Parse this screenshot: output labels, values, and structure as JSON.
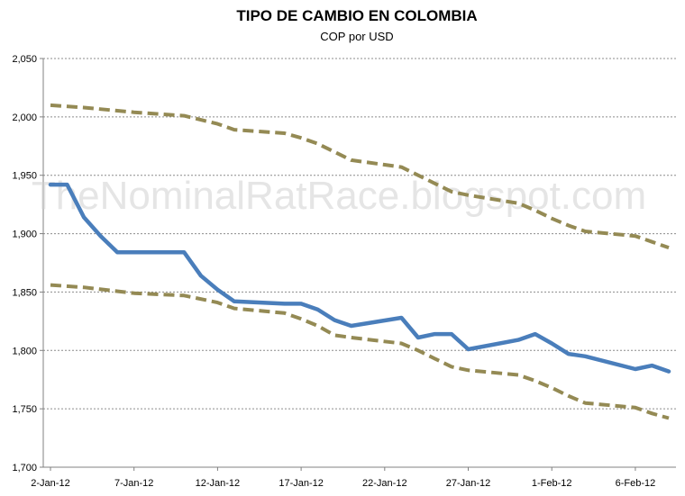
{
  "chart_data": {
    "type": "line",
    "title": "TIPO DE CAMBIO EN COLOMBIA",
    "subtitle": "COP por USD",
    "watermark": "TheNominalRatRace.blogspot.com",
    "xlabel": "",
    "ylabel": "",
    "ylim": [
      1700,
      2050
    ],
    "yticks": [
      1700,
      1750,
      1800,
      1850,
      1900,
      1950,
      2000,
      2050
    ],
    "ytick_labels": [
      "1,700",
      "1,750",
      "1,800",
      "1,850",
      "1,900",
      "1,950",
      "2,000",
      "2,050"
    ],
    "xlim": [
      "2012-01-02",
      "2012-02-08"
    ],
    "xticks": [
      "2012-01-02",
      "2012-01-07",
      "2012-01-12",
      "2012-01-17",
      "2012-01-22",
      "2012-01-27",
      "2012-02-01",
      "2012-02-06"
    ],
    "xtick_labels": [
      "2-Jan-12",
      "7-Jan-12",
      "12-Jan-12",
      "17-Jan-12",
      "22-Jan-12",
      "27-Jan-12",
      "1-Feb-12",
      "6-Feb-12"
    ],
    "grid": true,
    "series": [
      {
        "role": "main",
        "color": "#4a7ebb",
        "style": "solid",
        "x": [
          "2012-01-02",
          "2012-01-03",
          "2012-01-04",
          "2012-01-05",
          "2012-01-06",
          "2012-01-07",
          "2012-01-10",
          "2012-01-11",
          "2012-01-12",
          "2012-01-13",
          "2012-01-16",
          "2012-01-17",
          "2012-01-18",
          "2012-01-19",
          "2012-01-20",
          "2012-01-23",
          "2012-01-24",
          "2012-01-25",
          "2012-01-26",
          "2012-01-27",
          "2012-01-30",
          "2012-01-31",
          "2012-02-01",
          "2012-02-02",
          "2012-02-03",
          "2012-02-06",
          "2012-02-07",
          "2012-02-08"
        ],
        "y": [
          1942,
          1942,
          1914,
          1898,
          1884,
          1884,
          1884,
          1864,
          1852,
          1842,
          1840,
          1840,
          1835,
          1826,
          1821,
          1828,
          1811,
          1814,
          1814,
          1801,
          1809,
          1814,
          1806,
          1797,
          1795,
          1784,
          1787,
          1782
        ]
      },
      {
        "role": "upper",
        "color": "#948a54",
        "style": "dashed",
        "x": [
          "2012-01-02",
          "2012-01-04",
          "2012-01-07",
          "2012-01-10",
          "2012-01-12",
          "2012-01-13",
          "2012-01-16",
          "2012-01-17",
          "2012-01-18",
          "2012-01-19",
          "2012-01-20",
          "2012-01-23",
          "2012-01-24",
          "2012-01-25",
          "2012-01-26",
          "2012-01-27",
          "2012-01-30",
          "2012-01-31",
          "2012-02-01",
          "2012-02-02",
          "2012-02-03",
          "2012-02-06",
          "2012-02-07",
          "2012-02-08"
        ],
        "y": [
          2010,
          2008,
          2004,
          2001,
          1994,
          1989,
          1986,
          1982,
          1977,
          1970,
          1963,
          1957,
          1950,
          1943,
          1936,
          1933,
          1926,
          1920,
          1913,
          1907,
          1902,
          1898,
          1893,
          1888
        ]
      },
      {
        "role": "lower",
        "color": "#948a54",
        "style": "dashed",
        "x": [
          "2012-01-02",
          "2012-01-04",
          "2012-01-07",
          "2012-01-10",
          "2012-01-12",
          "2012-01-13",
          "2012-01-16",
          "2012-01-17",
          "2012-01-18",
          "2012-01-19",
          "2012-01-20",
          "2012-01-23",
          "2012-01-24",
          "2012-01-25",
          "2012-01-26",
          "2012-01-27",
          "2012-01-30",
          "2012-01-31",
          "2012-02-01",
          "2012-02-02",
          "2012-02-03",
          "2012-02-06",
          "2012-02-07",
          "2012-02-08"
        ],
        "y": [
          1856,
          1854,
          1849,
          1847,
          1841,
          1836,
          1832,
          1827,
          1821,
          1813,
          1811,
          1806,
          1800,
          1793,
          1786,
          1783,
          1779,
          1774,
          1768,
          1761,
          1755,
          1751,
          1746,
          1742
        ]
      }
    ]
  }
}
